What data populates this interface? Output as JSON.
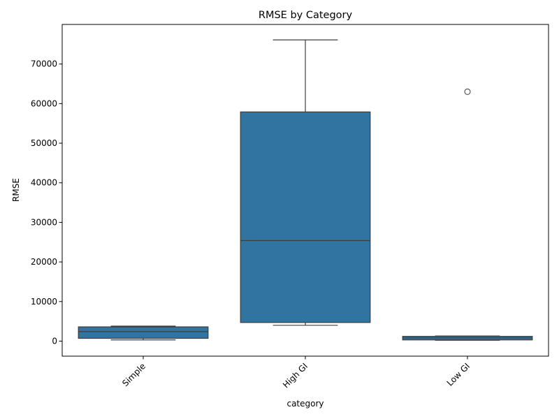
{
  "chart_data": {
    "type": "box",
    "title": "RMSE by Category",
    "xlabel": "category",
    "ylabel": "RMSE",
    "ylim": [
      -3800,
      80000
    ],
    "yticks": [
      0,
      10000,
      20000,
      30000,
      40000,
      50000,
      60000,
      70000
    ],
    "ytick_labels": [
      "0",
      "10000",
      "20000",
      "30000",
      "40000",
      "50000",
      "60000",
      "70000"
    ],
    "categories": [
      "Simple",
      "High GI",
      "Low GI"
    ],
    "boxes": [
      {
        "category": "Simple",
        "whisker_low": 300,
        "q1": 700,
        "median": 2400,
        "q3": 3600,
        "whisker_high": 3800,
        "outliers": []
      },
      {
        "category": "High GI",
        "whisker_low": 4000,
        "q1": 4700,
        "median": 25400,
        "q3": 57900,
        "whisker_high": 76100,
        "outliers": []
      },
      {
        "category": "Low GI",
        "whisker_low": 200,
        "q1": 300,
        "median": 800,
        "q3": 1200,
        "whisker_high": 1300,
        "outliers": [
          63000
        ]
      }
    ],
    "box_color": "#3274a1",
    "line_color": "#3d3d3d",
    "grid": false,
    "tick_rotation_deg": 45
  }
}
